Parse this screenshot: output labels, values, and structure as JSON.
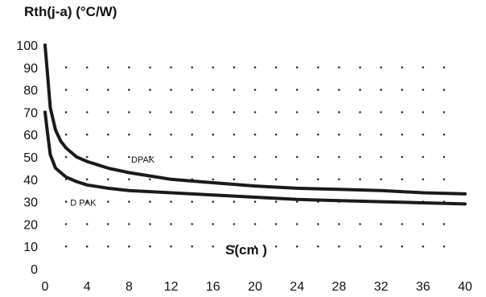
{
  "chart_data": {
    "type": "line",
    "ylabel": "Rth(j-a) (°C/W)",
    "xlabel": "S(cm )",
    "xlim": [
      0,
      40
    ],
    "ylim": [
      0,
      100
    ],
    "x_ticks": [
      "0",
      "4",
      "8",
      "12",
      "16",
      "20",
      "24",
      "28",
      "32",
      "36",
      "40"
    ],
    "y_ticks": [
      "0",
      "10",
      "20",
      "30",
      "40",
      "50",
      "60",
      "70",
      "80",
      "90",
      "100"
    ],
    "grid": "dotted",
    "line_color": "#1a1a1a",
    "series": [
      {
        "name": "DPAK",
        "x": [
          0,
          0.25,
          0.5,
          1,
          1.5,
          2,
          3,
          4,
          6,
          8,
          10,
          12,
          16,
          20,
          24,
          28,
          32,
          36,
          40
        ],
        "y": [
          100,
          86,
          72,
          62,
          57,
          54,
          50,
          48,
          45,
          43,
          41.5,
          40,
          38.5,
          37,
          36,
          35.5,
          35,
          34,
          33.5
        ]
      },
      {
        "name": "D PAK",
        "x": [
          0,
          0.25,
          0.5,
          1,
          1.5,
          2,
          3,
          4,
          6,
          8,
          10,
          12,
          16,
          20,
          24,
          28,
          32,
          36,
          40
        ],
        "y": [
          70,
          60,
          51,
          45,
          43,
          41,
          39,
          37.5,
          36,
          35,
          34.5,
          34,
          33,
          32,
          31,
          30.5,
          30,
          29.5,
          29
        ]
      }
    ]
  }
}
